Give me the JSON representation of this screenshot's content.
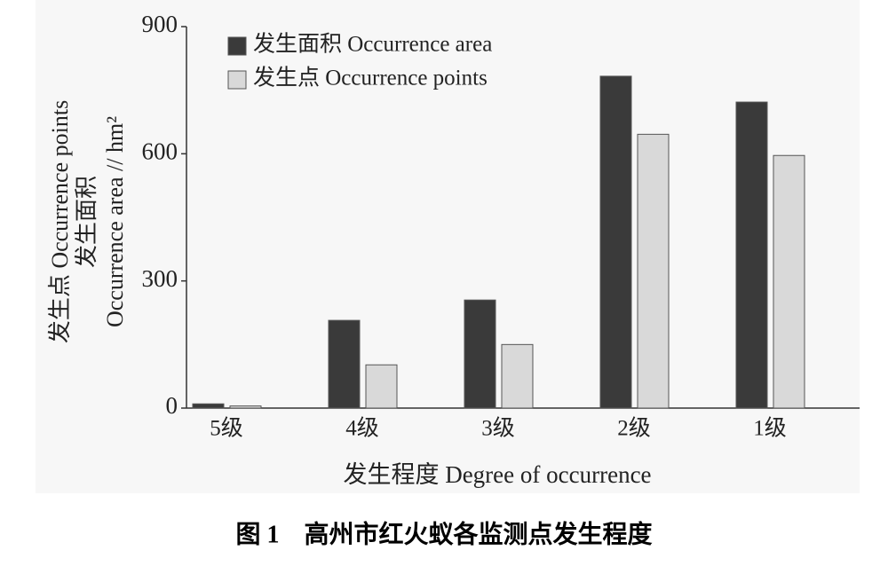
{
  "chart_data": {
    "type": "bar",
    "xlabel": "发生程度 Degree of occurrence",
    "ylabel_lines": [
      "发生点 Occurrence points",
      "发生面积",
      "Occurrence area // hm²"
    ],
    "categories": [
      "5级",
      "4级",
      "3级",
      "2级",
      "1级"
    ],
    "series": [
      {
        "name": "发生面积 Occurrence area",
        "color": "#3a3a3a",
        "values": [
          10,
          207,
          255,
          783,
          722
        ]
      },
      {
        "name": "发生点 Occurrence points",
        "color": "#d9d9d9",
        "values": [
          5,
          102,
          150,
          646,
          596
        ]
      }
    ],
    "ylim": [
      0,
      900
    ],
    "yticks": [
      0,
      300,
      600,
      900
    ],
    "legend": "upper-left"
  },
  "caption": "图 1　高州市红火蚁各监测点发生程度"
}
